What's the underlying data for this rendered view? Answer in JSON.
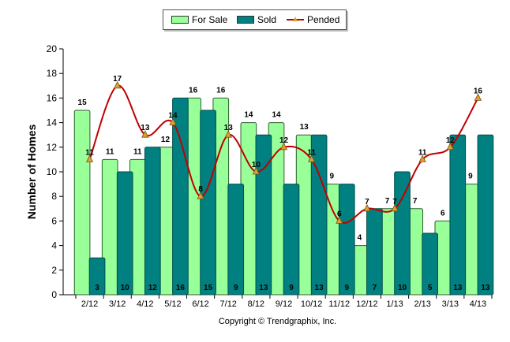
{
  "legend": {
    "for_sale": "For Sale",
    "sold": "Sold",
    "pended": "Pended"
  },
  "footer": {
    "copyright": "Copyright © Trendgraphix, Inc."
  },
  "colors": {
    "for_sale": "#99ff99",
    "sold": "#008080",
    "pended": "#c00000",
    "marker": "#e0a030"
  },
  "chart_data": {
    "type": "bar",
    "categories": [
      "2/12",
      "3/12",
      "4/12",
      "5/12",
      "6/12",
      "7/12",
      "8/12",
      "9/12",
      "10/12",
      "11/12",
      "12/12",
      "1/13",
      "2/13",
      "3/13",
      "4/13"
    ],
    "series": [
      {
        "name": "For Sale",
        "type": "bar",
        "values": [
          15,
          11,
          11,
          12,
          16,
          16,
          14,
          14,
          13,
          9,
          4,
          7,
          7,
          6,
          9
        ]
      },
      {
        "name": "Sold",
        "type": "bar",
        "values": [
          3,
          10,
          12,
          16,
          15,
          9,
          13,
          9,
          13,
          9,
          7,
          10,
          5,
          13,
          13
        ]
      },
      {
        "name": "Pended",
        "type": "line",
        "values": [
          11,
          17,
          13,
          14,
          8,
          13,
          10,
          12,
          11,
          6,
          7,
          7,
          11,
          12,
          16
        ]
      }
    ],
    "xlabel": "",
    "ylabel": "Number of Homes",
    "ylim": [
      0,
      20
    ],
    "yticks": [
      0,
      2,
      4,
      6,
      8,
      10,
      12,
      14,
      16,
      18,
      20
    ],
    "grid": false,
    "legend_position": "top-center"
  }
}
